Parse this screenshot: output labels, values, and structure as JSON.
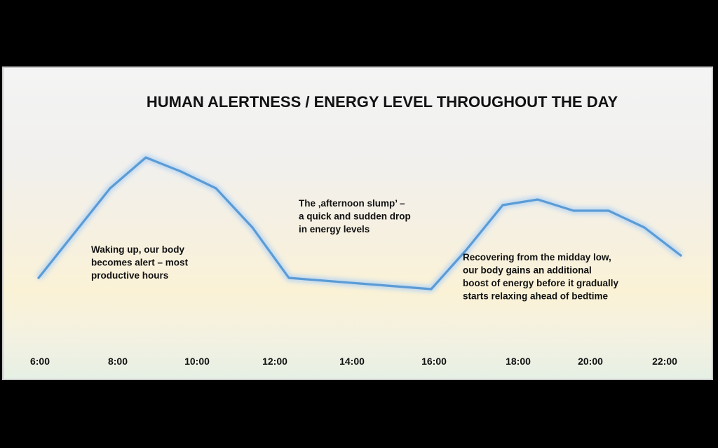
{
  "chart_data": {
    "type": "line",
    "title": "HUMAN ALERTNESS / ENERGY LEVEL THROUGHOUT THE DAY",
    "xlabel": "",
    "ylabel": "",
    "x_tick_labels": [
      "6:00",
      "8:00",
      "10:00",
      "12:00",
      "14:00",
      "16:00",
      "18:00",
      "20:00",
      "22:00"
    ],
    "x": [
      6.0,
      7.8,
      8.8,
      9.8,
      10.5,
      11.5,
      12.5,
      14.5,
      16.5,
      17.5,
      18.5,
      19.5,
      20.5,
      21.5,
      22.5,
      23.3
    ],
    "values": [
      40,
      72,
      83,
      78,
      72,
      58,
      40,
      38,
      36,
      50,
      66,
      68,
      64,
      64,
      58,
      48
    ],
    "ylim": [
      0,
      100
    ],
    "grid": false,
    "line_color": "#5b9bd5",
    "annotations": [
      {
        "lines": [
          "Waking up, our body",
          "becomes alert – most",
          "productive hours"
        ]
      },
      {
        "lines": [
          "The ‚afternoon slump’ –",
          "a quick and sudden drop",
          "in energy levels"
        ]
      },
      {
        "lines": [
          "Recovering from the midday low,",
          "our body gains an additional",
          "boost of energy before it gradually",
          "starts relaxing ahead of bedtime"
        ]
      }
    ]
  }
}
